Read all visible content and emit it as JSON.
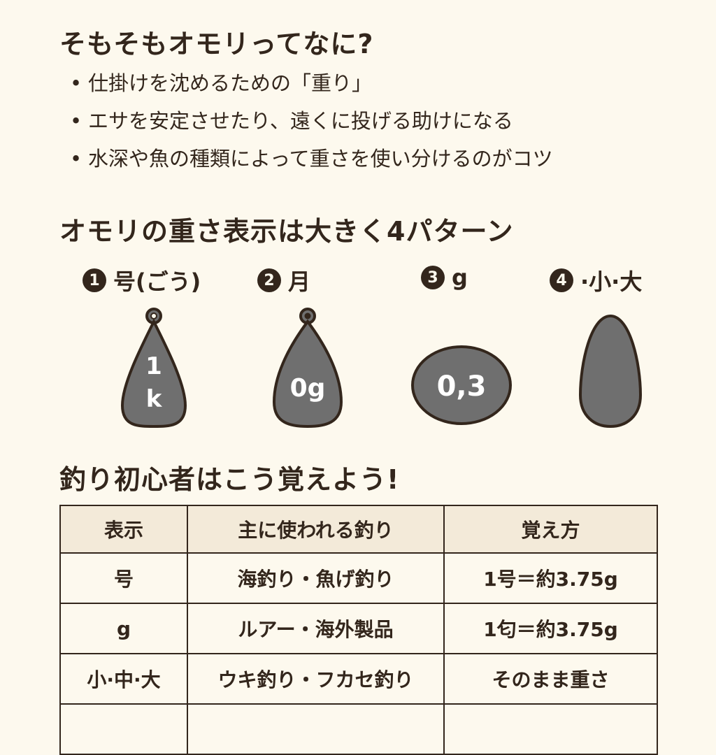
{
  "section1": {
    "title": "そもそもオモリってなに?",
    "bullets": [
      "仕掛けを沈めるための「重り」",
      "エサを安定させたり、遠くに投げる助けになる",
      "水深や魚の種類によって重さを使い分けるのがコツ"
    ]
  },
  "section2": {
    "title": "オモリの重さ表示は大きく4パターン",
    "patterns": [
      {
        "num": "1",
        "label": "号(ごう)",
        "shape_text": [
          "1",
          "k"
        ]
      },
      {
        "num": "2",
        "label": "月",
        "shape_text": [
          "0g"
        ]
      },
      {
        "num": "3",
        "label": "g",
        "shape_text": [
          "0,3"
        ]
      },
      {
        "num": "4",
        "label": "·小·大",
        "shape_text": []
      }
    ]
  },
  "section3": {
    "title": "釣り初心者はこう覚えよう!",
    "headers": [
      "表示",
      "主に使われる釣り",
      "覚え方"
    ],
    "rows": [
      [
        "号",
        "海釣り・魚げ釣り",
        "1号＝約3.75g"
      ],
      [
        "g",
        "ルアー・海外製品",
        "1匂＝約3.75g"
      ],
      [
        "小·中·大",
        "ウキ釣り・フカセ釣り",
        "そのまま重さ"
      ],
      [
        "",
        "",
        ""
      ]
    ]
  },
  "colors": {
    "background": "#fdf9ee",
    "text": "#33261c",
    "sinker_fill": "#6f6f6f",
    "table_header": "#f3ead9"
  }
}
